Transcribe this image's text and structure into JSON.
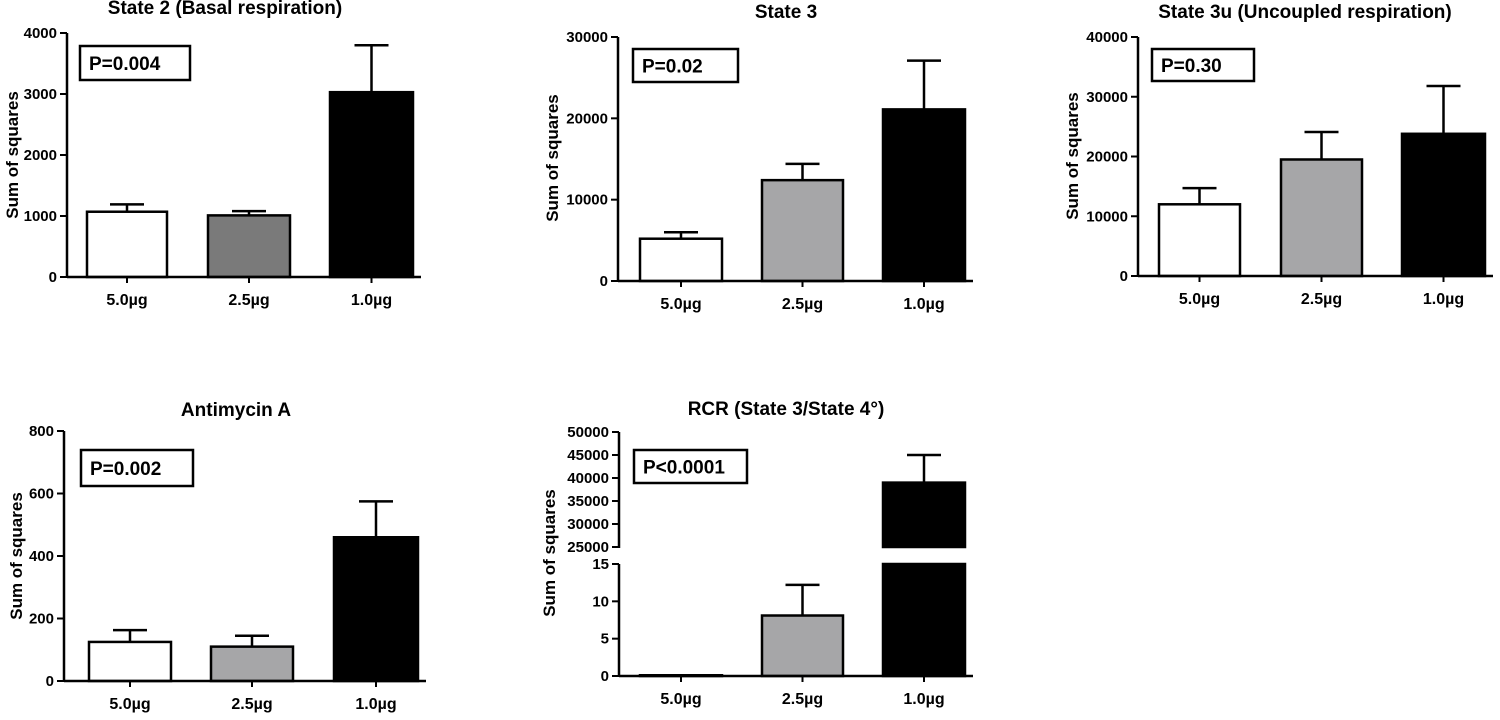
{
  "colors": {
    "white": "#ffffff",
    "light_gray": "#a6a6a8",
    "dark_gray": "#7a7a7a",
    "black": "#000000"
  },
  "chart_data": [
    {
      "type": "bar",
      "title": "State 2 (Basal respiration)",
      "ylabel": "Sum of squares",
      "annotation": "P=0.004",
      "categories": [
        "5.0µg",
        "2.5µg",
        "1.0µg"
      ],
      "values": [
        1070,
        1010,
        3030
      ],
      "errors": [
        120,
        70,
        770
      ],
      "fills": [
        "#ffffff",
        "#7a7a7a",
        "#000000"
      ],
      "ylim": [
        0,
        4000
      ],
      "ticks": [
        0,
        1000,
        2000,
        3000,
        4000
      ],
      "tick_labels": [
        "0",
        "1000",
        "2000",
        "3000",
        "4000"
      ]
    },
    {
      "type": "bar",
      "title": "State 3",
      "ylabel": "Sum of squares",
      "annotation": "P=0.02",
      "categories": [
        "5.0µg",
        "2.5µg",
        "1.0µg"
      ],
      "values": [
        5200,
        12400,
        21100
      ],
      "errors": [
        800,
        2000,
        6000
      ],
      "fills": [
        "#ffffff",
        "#a6a6a8",
        "#000000"
      ],
      "ylim": [
        0,
        30000
      ],
      "ticks": [
        0,
        10000,
        20000,
        30000
      ],
      "tick_labels": [
        "0",
        "10000",
        "20000",
        "30000"
      ]
    },
    {
      "type": "bar",
      "title": "State 3u (Uncoupled respiration)",
      "ylabel": "Sum of squares",
      "annotation": "P=0.30",
      "categories": [
        "5.0µg",
        "2.5µg",
        "1.0µg"
      ],
      "values": [
        12000,
        19500,
        23800
      ],
      "errors": [
        2700,
        4600,
        8000
      ],
      "fills": [
        "#ffffff",
        "#a6a6a8",
        "#000000"
      ],
      "ylim": [
        0,
        40000
      ],
      "ticks": [
        0,
        10000,
        20000,
        30000,
        40000
      ],
      "tick_labels": [
        "0",
        "10000",
        "20000",
        "30000",
        "40000"
      ]
    },
    {
      "type": "bar",
      "title": "Antimycin A",
      "ylabel": "Sum of squares",
      "annotation": "P=0.002",
      "categories": [
        "5.0µg",
        "2.5µg",
        "1.0µg"
      ],
      "values": [
        125,
        110,
        460
      ],
      "errors": [
        38,
        35,
        115
      ],
      "fills": [
        "#ffffff",
        "#a6a6a8",
        "#000000"
      ],
      "ylim": [
        0,
        800
      ],
      "ticks": [
        0,
        200,
        400,
        600,
        800
      ],
      "tick_labels": [
        "0",
        "200",
        "400",
        "600",
        "800"
      ]
    },
    {
      "type": "bar",
      "title": "RCR (State 3/State 4°)",
      "ylabel": "Sum of squares",
      "annotation": "P<0.0001",
      "categories": [
        "5.0µg",
        "2.5µg",
        "1.0µg"
      ],
      "values": [
        0.1,
        8.1,
        39000
      ],
      "errors": [
        0,
        4.1,
        6000
      ],
      "fills": [
        "#ffffff",
        "#a6a6a8",
        "#000000"
      ],
      "broken_axis": {
        "lower": {
          "ylim": [
            0,
            15
          ],
          "ticks": [
            0,
            5,
            10,
            15
          ],
          "tick_labels": [
            "0",
            "5",
            "10",
            "15"
          ]
        },
        "upper": {
          "ylim": [
            25000,
            50000
          ],
          "ticks": [
            25000,
            30000,
            35000,
            40000,
            45000,
            50000
          ],
          "tick_labels": [
            "25000",
            "30000",
            "35000",
            "40000",
            "45000",
            "50000"
          ]
        }
      }
    }
  ]
}
